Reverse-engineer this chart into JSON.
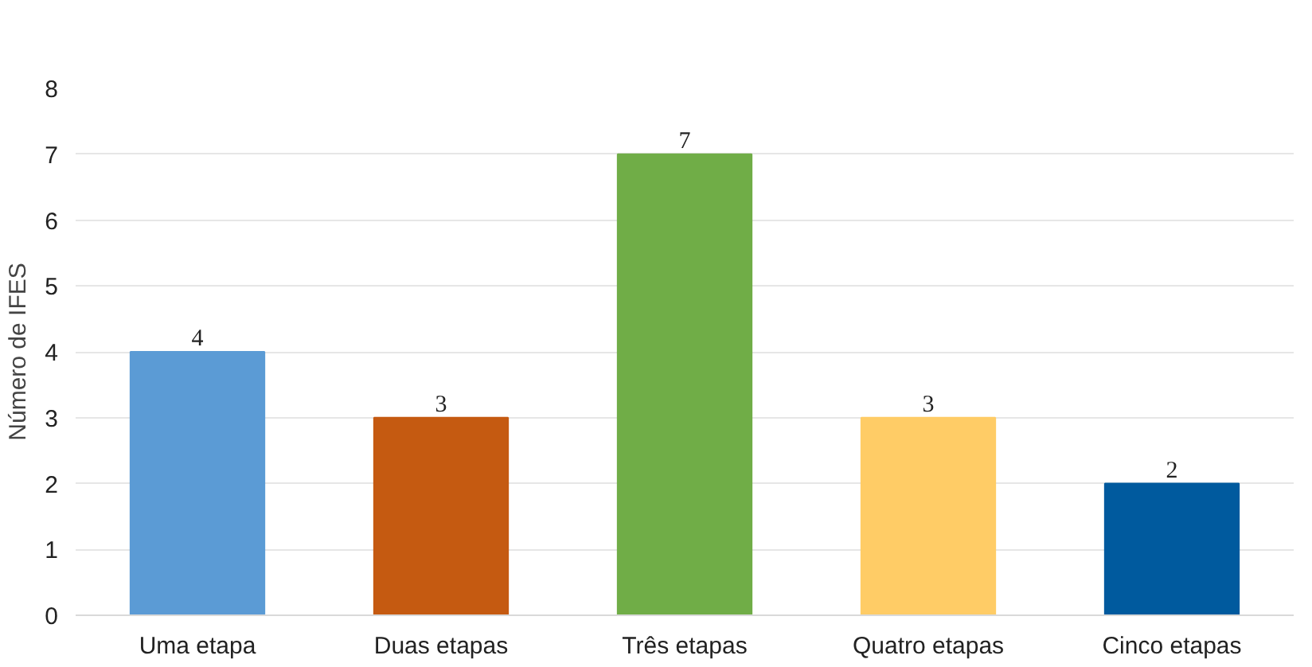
{
  "chart_data": {
    "type": "bar",
    "ylabel": "Número de IFES",
    "categories": [
      "Uma etapa",
      "Duas etapas",
      "Três etapas",
      "Quatro etapas",
      "Cinco etapas"
    ],
    "values": [
      4,
      3,
      7,
      3,
      2
    ],
    "colors": [
      "#5b9bd5",
      "#c55a11",
      "#70ad47",
      "#ffcc66",
      "#005a9e"
    ],
    "ylim": [
      0,
      8
    ],
    "yticks": [
      0,
      1,
      2,
      3,
      4,
      5,
      6,
      7,
      8
    ],
    "grid": "y",
    "data_labels": true
  }
}
